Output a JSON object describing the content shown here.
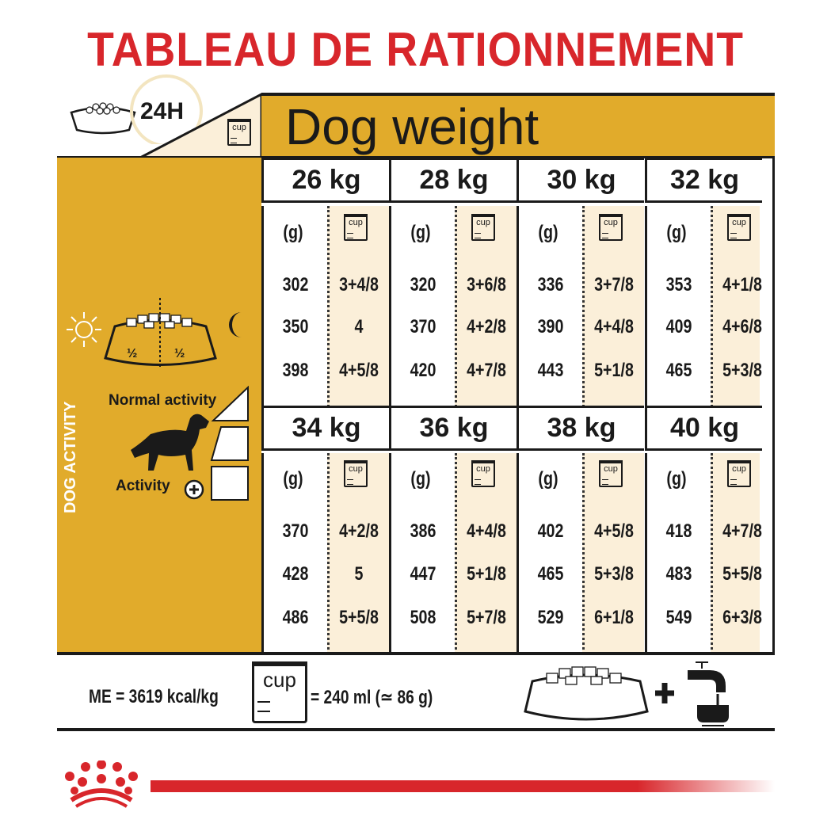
{
  "title": "TABLEAU DE RATIONNEMENT",
  "header": {
    "period": "24H",
    "cup_label": "cup",
    "dog_weight": "Dog weight"
  },
  "left_panel": {
    "half_left": "½",
    "half_right": "½",
    "dog_activity": "DOG ACTIVITY",
    "normal_activity": "Normal activity",
    "activity_plus": "Activity"
  },
  "units": {
    "grams": "(g)",
    "cup": "cup"
  },
  "weights": [
    {
      "weight": "26 kg",
      "rows": [
        [
          "302",
          "3+4/8"
        ],
        [
          "350",
          "4"
        ],
        [
          "398",
          "4+5/8"
        ]
      ]
    },
    {
      "weight": "28 kg",
      "rows": [
        [
          "320",
          "3+6/8"
        ],
        [
          "370",
          "4+2/8"
        ],
        [
          "420",
          "4+7/8"
        ]
      ]
    },
    {
      "weight": "30 kg",
      "rows": [
        [
          "336",
          "3+7/8"
        ],
        [
          "390",
          "4+4/8"
        ],
        [
          "443",
          "5+1/8"
        ]
      ]
    },
    {
      "weight": "32 kg",
      "rows": [
        [
          "353",
          "4+1/8"
        ],
        [
          "409",
          "4+6/8"
        ],
        [
          "465",
          "5+3/8"
        ]
      ]
    },
    {
      "weight": "34 kg",
      "rows": [
        [
          "370",
          "4+2/8"
        ],
        [
          "428",
          "5"
        ],
        [
          "486",
          "5+5/8"
        ]
      ]
    },
    {
      "weight": "36 kg",
      "rows": [
        [
          "386",
          "4+4/8"
        ],
        [
          "447",
          "5+1/8"
        ],
        [
          "508",
          "5+7/8"
        ]
      ]
    },
    {
      "weight": "38 kg",
      "rows": [
        [
          "402",
          "4+5/8"
        ],
        [
          "465",
          "5+3/8"
        ],
        [
          "529",
          "6+1/8"
        ]
      ]
    },
    {
      "weight": "40 kg",
      "rows": [
        [
          "418",
          "4+7/8"
        ],
        [
          "483",
          "5+5/8"
        ],
        [
          "549",
          "6+3/8"
        ]
      ]
    }
  ],
  "footer": {
    "energy": "ME = 3619 kcal/kg",
    "cup_label": "cup",
    "cup_equiv": "= 240 ml (≃ 86 g)"
  },
  "colors": {
    "title_red": "#d8262b",
    "gold": "#e1ab2b",
    "cream": "#fbefd9"
  }
}
